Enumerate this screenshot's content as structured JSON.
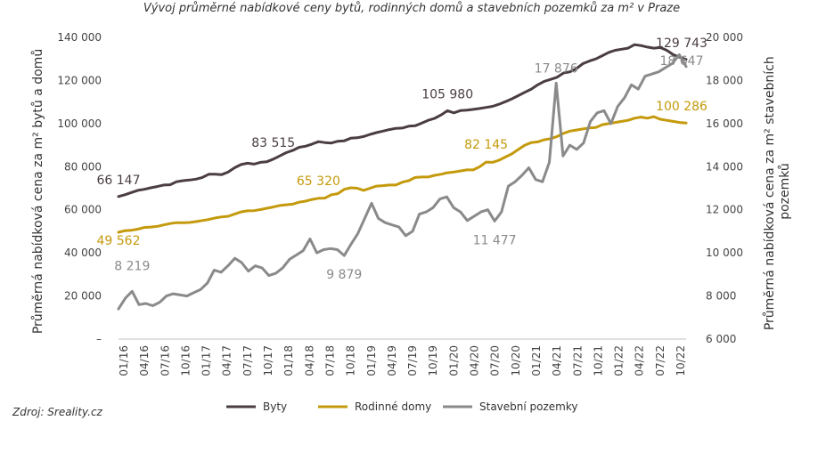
{
  "chart_data": {
    "type": "line",
    "title": "Vývoj průměrné nabídkové ceny bytů, rodinných domů a stavebních pozemků za m² v Praze",
    "ylabel_left": "Průměrná nabídková cena za m² bytů a domů",
    "ylabel_right": "Průměrná nabídková cena za m² stavebních pozemků",
    "ylim_left": [
      0,
      140000
    ],
    "ylim_right": [
      6000,
      20000
    ],
    "yticks_left": [
      "–",
      "20 000",
      "40 000",
      "60 000",
      "80 000",
      "100 000",
      "120 000",
      "140 000"
    ],
    "yticks_right": [
      "6 000",
      "8 000",
      "10 000",
      "12 000",
      "14 000",
      "16 000",
      "18 000",
      "20 000"
    ],
    "x_tick_labels": [
      "01/16",
      "04/16",
      "07/16",
      "10/16",
      "01/17",
      "04/17",
      "07/17",
      "10/17",
      "01/18",
      "04/18",
      "07/18",
      "10/18",
      "01/19",
      "04/19",
      "07/19",
      "10/19",
      "01/20",
      "04/20",
      "07/20",
      "10/20",
      "01/21",
      "04/21",
      "07/21",
      "10/21",
      "01/22",
      "04/22",
      "07/22",
      "10/22"
    ],
    "source": "Zdroj: Sreality.cz",
    "legend_position": "bottom",
    "series": [
      {
        "name": "Byty",
        "axis": "left",
        "color": "#4a3d43",
        "values": [
          66147,
          67000,
          68000,
          69000,
          69500,
          70200,
          70800,
          71500,
          71600,
          73000,
          73500,
          73800,
          74200,
          75000,
          76500,
          76500,
          76300,
          77500,
          79500,
          81000,
          81600,
          81200,
          82000,
          82300,
          83515,
          85000,
          86500,
          87500,
          89000,
          89500,
          90500,
          91600,
          91200,
          91000,
          91800,
          92000,
          93200,
          93400,
          94000,
          95000,
          95800,
          96500,
          97200,
          97800,
          97900,
          98800,
          99000,
          100200,
          101500,
          102400,
          104000,
          105980,
          105000,
          106000,
          106200,
          106600,
          107000,
          107500,
          108000,
          109000,
          110200,
          111500,
          113000,
          114500,
          116000,
          118000,
          119600,
          120500,
          121500,
          123500,
          124000,
          125500,
          127800,
          129000,
          130000,
          131500,
          133000,
          134000,
          134500,
          135000,
          136600,
          136200,
          135500,
          135000,
          135300,
          134000,
          132000,
          130800,
          129743
        ]
      },
      {
        "name": "Rodinné domy",
        "axis": "left",
        "color": "#c49a0c",
        "values": [
          49562,
          50300,
          50500,
          51000,
          51800,
          52000,
          52300,
          53000,
          53600,
          54000,
          54000,
          54100,
          54500,
          55000,
          55500,
          56200,
          56700,
          57000,
          58000,
          59000,
          59500,
          59600,
          60100,
          60700,
          61300,
          62000,
          62300,
          62600,
          63500,
          64000,
          64800,
          65320,
          65400,
          67000,
          67500,
          69500,
          70200,
          70000,
          69000,
          70000,
          71000,
          71200,
          71500,
          71500,
          72800,
          73500,
          75000,
          75200,
          75200,
          76000,
          76500,
          77200,
          77500,
          78000,
          78500,
          78500,
          80000,
          82145,
          82000,
          83000,
          84500,
          86000,
          88000,
          90000,
          91200,
          91500,
          92500,
          93000,
          94000,
          95500,
          96500,
          97000,
          97500,
          98000,
          98200,
          99500,
          100000,
          100500,
          101000,
          101500,
          102500,
          103000,
          102500,
          103200,
          102000,
          101500,
          101000,
          100500,
          100286
        ]
      },
      {
        "name": "Stavební pozemky",
        "axis": "right",
        "color": "#8a8a8a",
        "values": [
          7400,
          7900,
          8219,
          7600,
          7650,
          7550,
          7700,
          8000,
          8100,
          8050,
          8000,
          8150,
          8300,
          8600,
          9200,
          9100,
          9400,
          9750,
          9550,
          9150,
          9400,
          9300,
          8950,
          9050,
          9300,
          9700,
          9900,
          10100,
          10650,
          10000,
          10150,
          10200,
          10150,
          9879,
          10400,
          10900,
          11600,
          12300,
          11600,
          11400,
          11300,
          11200,
          10800,
          11000,
          11800,
          11900,
          12100,
          12500,
          12600,
          12100,
          11900,
          11500,
          11700,
          11900,
          12000,
          11477,
          11900,
          13100,
          13300,
          13600,
          13950,
          13400,
          13300,
          14200,
          17876,
          14500,
          15000,
          14800,
          15100,
          16100,
          16500,
          16600,
          16000,
          16800,
          17200,
          17800,
          17600,
          18200,
          18300,
          18400,
          18600,
          18800,
          19200,
          18647
        ]
      }
    ],
    "data_labels": [
      {
        "series": "Byty",
        "text": "66 147"
      },
      {
        "series": "Byty",
        "text": "83 515"
      },
      {
        "series": "Byty",
        "text": "105 980"
      },
      {
        "series": "Byty",
        "text": "129 743"
      },
      {
        "series": "Rodinné domy",
        "text": "49 562"
      },
      {
        "series": "Rodinné domy",
        "text": "65 320"
      },
      {
        "series": "Rodinné domy",
        "text": "82 145"
      },
      {
        "series": "Rodinné domy",
        "text": "100 286"
      },
      {
        "series": "Stavební pozemky",
        "text": "8 219"
      },
      {
        "series": "Stavební pozemky",
        "text": "9 879"
      },
      {
        "series": "Stavební pozemky",
        "text": "11 477"
      },
      {
        "series": "Stavební pozemky",
        "text": "17 876"
      },
      {
        "series": "Stavební pozemky",
        "text": "18 647"
      }
    ]
  }
}
